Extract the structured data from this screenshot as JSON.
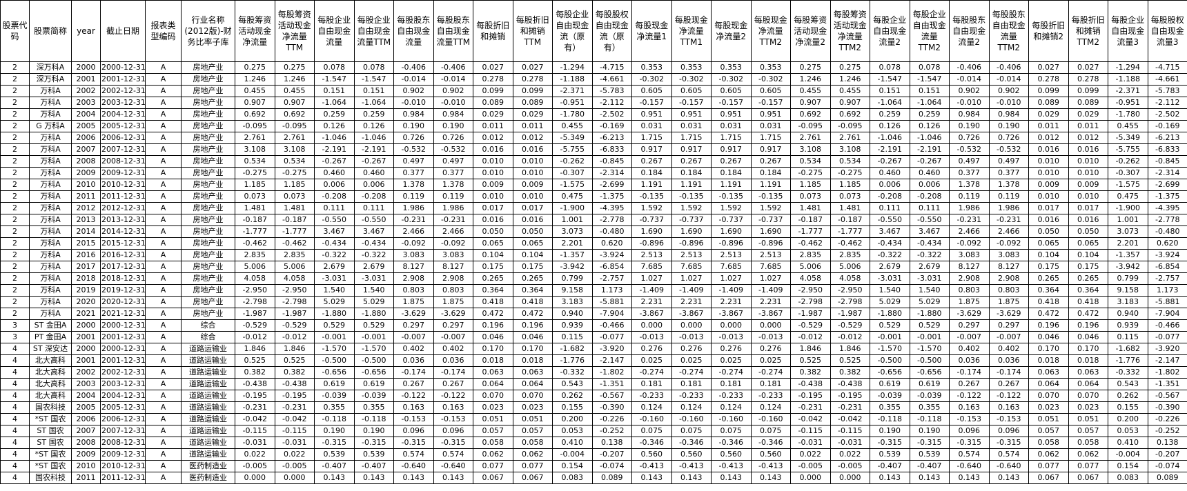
{
  "table": {
    "header": [
      "股票代码",
      "股票简称",
      "year",
      "截止日期",
      "报表类型编码",
      "行业名称(2012版)-财务比率子库",
      "每股筹资活动现金净流量",
      "每股筹资活动现金净流量TTM",
      "每股企业自由现金流量",
      "每股企业自由现金流量TTM",
      "每股股东自由现金流量",
      "每股股东自由现金流量TTM",
      "每股折旧和摊销",
      "每股折旧和摊销TTM",
      "每股企业自由现金流（原有）",
      "每股股权自由现金流（原有）",
      "每股现金净流量1",
      "每股现金净流量TTM1",
      "每股现金净流量2",
      "每股现金净流量TTM2",
      "每股筹资活动现金净流量2",
      "每股筹资活动现金净流量TTM2",
      "每股企业自由现金流量2",
      "每股企业自由现金流量TTM2",
      "每股股东自由现金流量2",
      "每股股东自由现金流量TTM2",
      "每股折旧和摊销2",
      "每股折旧和摊销TTM2",
      "每股企业自由现金流量3",
      "每股股权自由现金流量3"
    ],
    "rows": [
      [
        "2",
        "深万科A",
        "2000",
        "2000-12-31",
        "A",
        "房地产业",
        "0.275",
        "0.275",
        "0.078",
        "0.078",
        "-0.406",
        "-0.406",
        "0.027",
        "0.027",
        "-1.294",
        "-4.715",
        "0.353",
        "0.353",
        "0.353",
        "0.353",
        "0.275",
        "0.275",
        "0.078",
        "0.078",
        "-0.406",
        "-0.406",
        "0.027",
        "0.027",
        "-1.294",
        "-4.715"
      ],
      [
        "2",
        "深万科A",
        "2001",
        "2001-12-31",
        "A",
        "房地产业",
        "1.246",
        "1.246",
        "-1.547",
        "-1.547",
        "-0.014",
        "-0.014",
        "0.278",
        "0.278",
        "-1.188",
        "-4.661",
        "-0.302",
        "-0.302",
        "-0.302",
        "-0.302",
        "1.246",
        "1.246",
        "-1.547",
        "-1.547",
        "-0.014",
        "-0.014",
        "0.278",
        "0.278",
        "-1.188",
        "-4.661"
      ],
      [
        "2",
        "万科A",
        "2002",
        "2002-12-31",
        "A",
        "房地产业",
        "0.455",
        "0.455",
        "0.151",
        "0.151",
        "0.902",
        "0.902",
        "0.099",
        "0.099",
        "-2.371",
        "-5.783",
        "0.605",
        "0.605",
        "0.605",
        "0.605",
        "0.455",
        "0.455",
        "0.151",
        "0.151",
        "0.902",
        "0.902",
        "0.099",
        "0.099",
        "-2.371",
        "-5.783"
      ],
      [
        "2",
        "万科A",
        "2003",
        "2003-12-31",
        "A",
        "房地产业",
        "0.907",
        "0.907",
        "-1.064",
        "-1.064",
        "-0.010",
        "-0.010",
        "0.089",
        "0.089",
        "-0.951",
        "-2.112",
        "-0.157",
        "-0.157",
        "-0.157",
        "-0.157",
        "0.907",
        "0.907",
        "-1.064",
        "-1.064",
        "-0.010",
        "-0.010",
        "0.089",
        "0.089",
        "-0.951",
        "-2.112"
      ],
      [
        "2",
        "万科A",
        "2004",
        "2004-12-31",
        "A",
        "房地产业",
        "0.692",
        "0.692",
        "0.259",
        "0.259",
        "0.984",
        "0.984",
        "0.029",
        "0.029",
        "-1.780",
        "-2.502",
        "0.951",
        "0.951",
        "0.951",
        "0.951",
        "0.692",
        "0.692",
        "0.259",
        "0.259",
        "0.984",
        "0.984",
        "0.029",
        "0.029",
        "-1.780",
        "-2.502"
      ],
      [
        "2",
        "G 万科A",
        "2005",
        "2005-12-31",
        "A",
        "房地产业",
        "-0.095",
        "-0.095",
        "0.126",
        "0.126",
        "0.190",
        "0.190",
        "0.011",
        "0.011",
        "0.455",
        "-0.169",
        "0.031",
        "0.031",
        "0.031",
        "0.031",
        "-0.095",
        "-0.095",
        "0.126",
        "0.126",
        "0.190",
        "0.190",
        "0.011",
        "0.011",
        "0.455",
        "-0.169"
      ],
      [
        "2",
        "万科A",
        "2006",
        "2006-12-31",
        "A",
        "房地产业",
        "2.761",
        "2.761",
        "-1.046",
        "-1.046",
        "0.726",
        "0.726",
        "0.012",
        "0.012",
        "-5.349",
        "-6.213",
        "1.715",
        "1.715",
        "1.715",
        "1.715",
        "2.761",
        "2.761",
        "-1.046",
        "-1.046",
        "0.726",
        "0.726",
        "0.012",
        "0.012",
        "-5.349",
        "-6.213"
      ],
      [
        "2",
        "万科A",
        "2007",
        "2007-12-31",
        "A",
        "房地产业",
        "3.108",
        "3.108",
        "-2.191",
        "-2.191",
        "-0.532",
        "-0.532",
        "0.016",
        "0.016",
        "-5.755",
        "-6.833",
        "0.917",
        "0.917",
        "0.917",
        "0.917",
        "3.108",
        "3.108",
        "-2.191",
        "-2.191",
        "-0.532",
        "-0.532",
        "0.016",
        "0.016",
        "-5.755",
        "-6.833"
      ],
      [
        "2",
        "万科A",
        "2008",
        "2008-12-31",
        "A",
        "房地产业",
        "0.534",
        "0.534",
        "-0.267",
        "-0.267",
        "0.497",
        "0.497",
        "0.010",
        "0.010",
        "-0.262",
        "-0.845",
        "0.267",
        "0.267",
        "0.267",
        "0.267",
        "0.534",
        "0.534",
        "-0.267",
        "-0.267",
        "0.497",
        "0.497",
        "0.010",
        "0.010",
        "-0.262",
        "-0.845"
      ],
      [
        "2",
        "万科A",
        "2009",
        "2009-12-31",
        "A",
        "房地产业",
        "-0.275",
        "-0.275",
        "0.460",
        "0.460",
        "0.377",
        "0.377",
        "0.010",
        "0.010",
        "-0.307",
        "-2.314",
        "0.184",
        "0.184",
        "0.184",
        "0.184",
        "-0.275",
        "-0.275",
        "0.460",
        "0.460",
        "0.377",
        "0.377",
        "0.010",
        "0.010",
        "-0.307",
        "-2.314"
      ],
      [
        "2",
        "万科A",
        "2010",
        "2010-12-31",
        "A",
        "房地产业",
        "1.185",
        "1.185",
        "0.006",
        "0.006",
        "1.378",
        "1.378",
        "0.009",
        "0.009",
        "-1.575",
        "-2.699",
        "1.191",
        "1.191",
        "1.191",
        "1.191",
        "1.185",
        "1.185",
        "0.006",
        "0.006",
        "1.378",
        "1.378",
        "0.009",
        "0.009",
        "-1.575",
        "-2.699"
      ],
      [
        "2",
        "万科A",
        "2011",
        "2011-12-31",
        "A",
        "房地产业",
        "0.073",
        "0.073",
        "-0.208",
        "-0.208",
        "0.119",
        "0.119",
        "0.010",
        "0.010",
        "0.475",
        "-1.375",
        "-0.135",
        "-0.135",
        "-0.135",
        "-0.135",
        "0.073",
        "0.073",
        "-0.208",
        "-0.208",
        "0.119",
        "0.119",
        "0.010",
        "0.010",
        "0.475",
        "-1.375"
      ],
      [
        "2",
        "万科A",
        "2012",
        "2012-12-31",
        "A",
        "房地产业",
        "1.481",
        "1.481",
        "0.111",
        "0.111",
        "1.986",
        "1.986",
        "0.017",
        "0.017",
        "-1.900",
        "-4.395",
        "1.592",
        "1.592",
        "1.592",
        "1.592",
        "1.481",
        "1.481",
        "0.111",
        "0.111",
        "1.986",
        "1.986",
        "0.017",
        "0.017",
        "-1.900",
        "-4.395"
      ],
      [
        "2",
        "万科A",
        "2013",
        "2013-12-31",
        "A",
        "房地产业",
        "-0.187",
        "-0.187",
        "-0.550",
        "-0.550",
        "-0.231",
        "-0.231",
        "0.016",
        "0.016",
        "1.001",
        "-2.778",
        "-0.737",
        "-0.737",
        "-0.737",
        "-0.737",
        "-0.187",
        "-0.187",
        "-0.550",
        "-0.550",
        "-0.231",
        "-0.231",
        "0.016",
        "0.016",
        "1.001",
        "-2.778"
      ],
      [
        "2",
        "万科A",
        "2014",
        "2014-12-31",
        "A",
        "房地产业",
        "-1.777",
        "-1.777",
        "3.467",
        "3.467",
        "2.466",
        "2.466",
        "0.050",
        "0.050",
        "3.073",
        "-0.480",
        "1.690",
        "1.690",
        "1.690",
        "1.690",
        "-1.777",
        "-1.777",
        "3.467",
        "3.467",
        "2.466",
        "2.466",
        "0.050",
        "0.050",
        "3.073",
        "-0.480"
      ],
      [
        "2",
        "万科A",
        "2015",
        "2015-12-31",
        "A",
        "房地产业",
        "-0.462",
        "-0.462",
        "-0.434",
        "-0.434",
        "-0.092",
        "-0.092",
        "0.065",
        "0.065",
        "2.201",
        "0.620",
        "-0.896",
        "-0.896",
        "-0.896",
        "-0.896",
        "-0.462",
        "-0.462",
        "-0.434",
        "-0.434",
        "-0.092",
        "-0.092",
        "0.065",
        "0.065",
        "2.201",
        "0.620"
      ],
      [
        "2",
        "万科A",
        "2016",
        "2016-12-31",
        "A",
        "房地产业",
        "2.835",
        "2.835",
        "-0.322",
        "-0.322",
        "3.083",
        "3.083",
        "0.104",
        "0.104",
        "-1.357",
        "-3.924",
        "2.513",
        "2.513",
        "2.513",
        "2.513",
        "2.835",
        "2.835",
        "-0.322",
        "-0.322",
        "3.083",
        "3.083",
        "0.104",
        "0.104",
        "-1.357",
        "-3.924"
      ],
      [
        "2",
        "万科A",
        "2017",
        "2017-12-31",
        "A",
        "房地产业",
        "5.006",
        "5.006",
        "2.679",
        "2.679",
        "8.127",
        "8.127",
        "0.175",
        "0.175",
        "-3.942",
        "-6.854",
        "7.685",
        "7.685",
        "7.685",
        "7.685",
        "5.006",
        "5.006",
        "2.679",
        "2.679",
        "8.127",
        "8.127",
        "0.175",
        "0.175",
        "-3.942",
        "-6.854"
      ],
      [
        "2",
        "万科A",
        "2018",
        "2018-12-31",
        "A",
        "房地产业",
        "4.058",
        "4.058",
        "-3.031",
        "-3.031",
        "2.908",
        "2.908",
        "0.265",
        "0.265",
        "0.799",
        "-2.757",
        "1.027",
        "1.027",
        "1.027",
        "1.027",
        "4.058",
        "4.058",
        "-3.031",
        "-3.031",
        "2.908",
        "2.908",
        "0.265",
        "0.265",
        "0.799",
        "-2.757"
      ],
      [
        "2",
        "万科A",
        "2019",
        "2019-12-31",
        "A",
        "房地产业",
        "-2.950",
        "-2.950",
        "1.540",
        "1.540",
        "0.803",
        "0.803",
        "0.364",
        "0.364",
        "9.158",
        "1.173",
        "-1.409",
        "-1.409",
        "-1.409",
        "-1.409",
        "-2.950",
        "-2.950",
        "1.540",
        "1.540",
        "0.803",
        "0.803",
        "0.364",
        "0.364",
        "9.158",
        "1.173"
      ],
      [
        "2",
        "万科A",
        "2020",
        "2020-12-31",
        "A",
        "房地产业",
        "-2.798",
        "-2.798",
        "5.029",
        "5.029",
        "1.875",
        "1.875",
        "0.418",
        "0.418",
        "3.183",
        "-5.881",
        "2.231",
        "2.231",
        "2.231",
        "2.231",
        "-2.798",
        "-2.798",
        "5.029",
        "5.029",
        "1.875",
        "1.875",
        "0.418",
        "0.418",
        "3.183",
        "-5.881"
      ],
      [
        "2",
        "万科A",
        "2021",
        "2021-12-31",
        "A",
        "房地产业",
        "-1.987",
        "-1.987",
        "-1.880",
        "-1.880",
        "-3.629",
        "-3.629",
        "0.472",
        "0.472",
        "0.940",
        "-7.904",
        "-3.867",
        "-3.867",
        "-3.867",
        "-3.867",
        "-1.987",
        "-1.987",
        "-1.880",
        "-1.880",
        "-3.629",
        "-3.629",
        "0.472",
        "0.472",
        "0.940",
        "-7.904"
      ],
      [
        "3",
        "ST 金田A",
        "2000",
        "2000-12-31",
        "A",
        "综合",
        "-0.529",
        "-0.529",
        "0.529",
        "0.529",
        "0.297",
        "0.297",
        "0.196",
        "0.196",
        "0.939",
        "-0.466",
        "0.000",
        "0.000",
        "0.000",
        "0.000",
        "-0.529",
        "-0.529",
        "0.529",
        "0.529",
        "0.297",
        "0.297",
        "0.196",
        "0.196",
        "0.939",
        "-0.466"
      ],
      [
        "3",
        "PT 金田A",
        "2001",
        "2001-12-31",
        "A",
        "综合",
        "-0.012",
        "-0.012",
        "-0.001",
        "-0.001",
        "-0.007",
        "-0.007",
        "0.046",
        "0.046",
        "0.115",
        "-0.077",
        "-0.013",
        "-0.013",
        "-0.013",
        "-0.013",
        "-0.012",
        "-0.012",
        "-0.001",
        "-0.001",
        "-0.007",
        "-0.007",
        "0.046",
        "0.046",
        "0.115",
        "-0.077"
      ],
      [
        "4",
        "ST 深安达",
        "2000",
        "2000-12-31",
        "A",
        "道路运输业",
        "1.846",
        "1.846",
        "-1.570",
        "-1.570",
        "0.402",
        "0.402",
        "0.170",
        "0.170",
        "-1.682",
        "-3.920",
        "0.276",
        "0.276",
        "0.276",
        "0.276",
        "1.846",
        "1.846",
        "-1.570",
        "-1.570",
        "0.402",
        "0.402",
        "0.170",
        "0.170",
        "-1.682",
        "-3.920"
      ],
      [
        "4",
        "北大高科",
        "2001",
        "2001-12-31",
        "A",
        "道路运输业",
        "0.525",
        "0.525",
        "-0.500",
        "-0.500",
        "0.036",
        "0.036",
        "0.018",
        "0.018",
        "-1.776",
        "-2.147",
        "0.025",
        "0.025",
        "0.025",
        "0.025",
        "0.525",
        "0.525",
        "-0.500",
        "-0.500",
        "0.036",
        "0.036",
        "0.018",
        "0.018",
        "-1.776",
        "-2.147"
      ],
      [
        "4",
        "北大高科",
        "2002",
        "2002-12-31",
        "A",
        "道路运输业",
        "0.382",
        "0.382",
        "-0.656",
        "-0.656",
        "-0.174",
        "-0.174",
        "0.063",
        "0.063",
        "-0.332",
        "-1.802",
        "-0.274",
        "-0.274",
        "-0.274",
        "-0.274",
        "0.382",
        "0.382",
        "-0.656",
        "-0.656",
        "-0.174",
        "-0.174",
        "0.063",
        "0.063",
        "-0.332",
        "-1.802"
      ],
      [
        "4",
        "北大高科",
        "2003",
        "2003-12-31",
        "A",
        "道路运输业",
        "-0.438",
        "-0.438",
        "0.619",
        "0.619",
        "0.267",
        "0.267",
        "0.064",
        "0.064",
        "0.543",
        "-1.351",
        "0.181",
        "0.181",
        "0.181",
        "0.181",
        "-0.438",
        "-0.438",
        "0.619",
        "0.619",
        "0.267",
        "0.267",
        "0.064",
        "0.064",
        "0.543",
        "-1.351"
      ],
      [
        "4",
        "北大高科",
        "2004",
        "2004-12-31",
        "A",
        "道路运输业",
        "-0.195",
        "-0.195",
        "-0.039",
        "-0.039",
        "-0.122",
        "-0.122",
        "0.070",
        "0.070",
        "0.262",
        "-0.567",
        "-0.233",
        "-0.233",
        "-0.233",
        "-0.233",
        "-0.195",
        "-0.195",
        "-0.039",
        "-0.039",
        "-0.122",
        "-0.122",
        "0.070",
        "0.070",
        "0.262",
        "-0.567"
      ],
      [
        "4",
        "国农科技",
        "2005",
        "2005-12-31",
        "A",
        "道路运输业",
        "-0.231",
        "-0.231",
        "0.355",
        "0.355",
        "0.163",
        "0.163",
        "0.023",
        "0.023",
        "0.155",
        "-0.390",
        "0.124",
        "0.124",
        "0.124",
        "0.124",
        "-0.231",
        "-0.231",
        "0.355",
        "0.355",
        "0.163",
        "0.163",
        "0.023",
        "0.023",
        "0.155",
        "-0.390"
      ],
      [
        "4",
        "*ST 国农",
        "2006",
        "2006-12-31",
        "A",
        "道路运输业",
        "-0.042",
        "-0.042",
        "-0.118",
        "-0.118",
        "-0.153",
        "-0.153",
        "0.051",
        "0.051",
        "0.200",
        "-0.226",
        "-0.160",
        "-0.160",
        "-0.160",
        "-0.160",
        "-0.042",
        "-0.042",
        "-0.118",
        "-0.118",
        "-0.153",
        "-0.153",
        "0.051",
        "0.051",
        "0.200",
        "-0.226"
      ],
      [
        "4",
        "ST 国农",
        "2007",
        "2007-12-31",
        "A",
        "道路运输业",
        "-0.115",
        "-0.115",
        "0.190",
        "0.190",
        "0.096",
        "0.096",
        "0.057",
        "0.057",
        "0.053",
        "-0.252",
        "0.075",
        "0.075",
        "0.075",
        "0.075",
        "-0.115",
        "-0.115",
        "0.190",
        "0.190",
        "0.096",
        "0.096",
        "0.057",
        "0.057",
        "0.053",
        "-0.252"
      ],
      [
        "4",
        "ST 国农",
        "2008",
        "2008-12-31",
        "A",
        "道路运输业",
        "-0.031",
        "-0.031",
        "-0.315",
        "-0.315",
        "-0.315",
        "-0.315",
        "0.058",
        "0.058",
        "0.410",
        "0.138",
        "-0.346",
        "-0.346",
        "-0.346",
        "-0.346",
        "-0.031",
        "-0.031",
        "-0.315",
        "-0.315",
        "-0.315",
        "-0.315",
        "0.058",
        "0.058",
        "0.410",
        "0.138"
      ],
      [
        "4",
        "*ST 国农",
        "2009",
        "2009-12-31",
        "A",
        "道路运输业",
        "0.022",
        "0.022",
        "0.539",
        "0.539",
        "0.574",
        "0.574",
        "0.062",
        "0.062",
        "-0.004",
        "-0.207",
        "0.560",
        "0.560",
        "0.560",
        "0.560",
        "0.022",
        "0.022",
        "0.539",
        "0.539",
        "0.574",
        "0.574",
        "0.062",
        "0.062",
        "-0.004",
        "-0.207"
      ],
      [
        "4",
        "*ST 国农",
        "2010",
        "2010-12-31",
        "A",
        "医药制造业",
        "-0.005",
        "-0.005",
        "-0.407",
        "-0.407",
        "-0.640",
        "-0.640",
        "0.077",
        "0.077",
        "0.154",
        "-0.074",
        "-0.413",
        "-0.413",
        "-0.413",
        "-0.413",
        "-0.005",
        "-0.005",
        "-0.407",
        "-0.407",
        "-0.640",
        "-0.640",
        "0.077",
        "0.077",
        "0.154",
        "-0.074"
      ],
      [
        "4",
        "国农科技",
        "2011",
        "2011-12-31",
        "A",
        "医药制造业",
        "0.000",
        "0.000",
        "0.143",
        "0.143",
        "0.143",
        "0.143",
        "0.067",
        "0.067",
        "0.083",
        "0.089",
        "0.143",
        "0.143",
        "0.143",
        "0.143",
        "0.000",
        "0.000",
        "0.143",
        "0.143",
        "0.143",
        "0.143",
        "0.067",
        "0.067",
        "0.083",
        "0.089"
      ]
    ]
  }
}
